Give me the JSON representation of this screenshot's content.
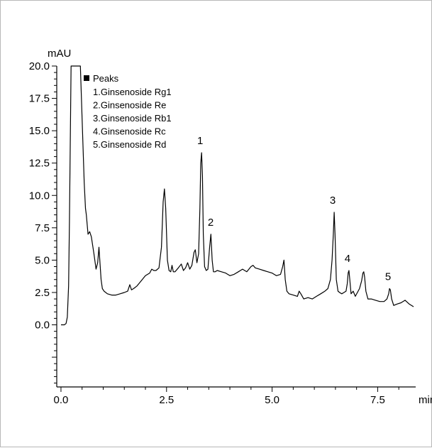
{
  "chart_data": {
    "type": "line",
    "title": "",
    "xlabel": "",
    "ylabel": "",
    "x_unit": "min",
    "y_unit": "mAU",
    "xlim": [
      -0.1,
      8.4
    ],
    "ylim": [
      -4.8,
      20.0
    ],
    "x_ticks": [
      "0.0",
      "2.5",
      "5.0",
      "7.5"
    ],
    "y_ticks": [
      "0.0",
      "2.5",
      "5.0",
      "7.5",
      "10.0",
      "12.5",
      "15.0",
      "17.5",
      "20.0"
    ],
    "legend": {
      "title": "Peaks",
      "entries": [
        "1.Ginsenoside Rg1",
        "2.Ginsenoside Re",
        "3.Ginsenoside Rb1",
        "4.Ginsenoside Rc",
        "5.Ginsenoside Rd"
      ]
    },
    "peak_labels": [
      {
        "label": "1",
        "x": 3.33,
        "y": 13.3
      },
      {
        "label": "2",
        "x": 3.58,
        "y": 7.0
      },
      {
        "label": "3",
        "x": 6.47,
        "y": 8.7
      },
      {
        "label": "4",
        "x": 6.82,
        "y": 4.2
      },
      {
        "label": "5",
        "x": 7.78,
        "y": 2.8
      }
    ],
    "series": [
      {
        "x": [
          0.0,
          0.08,
          0.12,
          0.15,
          0.18,
          0.2,
          0.24,
          0.3,
          0.4,
          0.46,
          0.5,
          0.53,
          0.55,
          0.58,
          0.6,
          0.64,
          0.68,
          0.72,
          0.78,
          0.83,
          0.87,
          0.9,
          0.92,
          0.95,
          0.98,
          1.02,
          1.1,
          1.2,
          1.3,
          1.4,
          1.5,
          1.58,
          1.63,
          1.67,
          1.72,
          1.8,
          1.9,
          2.0,
          2.1,
          2.15,
          2.2,
          2.25,
          2.32,
          2.38,
          2.42,
          2.45,
          2.48,
          2.52,
          2.56,
          2.6,
          2.63,
          2.66,
          2.7,
          2.78,
          2.85,
          2.9,
          2.95,
          3.0,
          3.05,
          3.1,
          3.15,
          3.18,
          3.22,
          3.26,
          3.29,
          3.31,
          3.33,
          3.35,
          3.37,
          3.4,
          3.44,
          3.48,
          3.52,
          3.55,
          3.58,
          3.61,
          3.65,
          3.7,
          3.8,
          3.9,
          4.0,
          4.1,
          4.2,
          4.3,
          4.4,
          4.5,
          4.55,
          4.6,
          4.7,
          4.8,
          4.9,
          5.0,
          5.1,
          5.2,
          5.25,
          5.28,
          5.31,
          5.35,
          5.4,
          5.5,
          5.6,
          5.64,
          5.68,
          5.75,
          5.85,
          5.95,
          6.05,
          6.15,
          6.25,
          6.32,
          6.38,
          6.42,
          6.45,
          6.47,
          6.49,
          6.52,
          6.56,
          6.6,
          6.65,
          6.7,
          6.75,
          6.78,
          6.8,
          6.82,
          6.84,
          6.87,
          6.92,
          6.97,
          7.02,
          7.07,
          7.12,
          7.15,
          7.17,
          7.19,
          7.22,
          7.27,
          7.35,
          7.45,
          7.55,
          7.65,
          7.72,
          7.76,
          7.78,
          7.8,
          7.83,
          7.88,
          7.95,
          8.05,
          8.15,
          8.25,
          8.35
        ],
        "y": [
          0.0,
          0.0,
          0.1,
          0.6,
          3.0,
          8.0,
          20.0,
          20.0,
          20.0,
          20.0,
          16.0,
          13.0,
          11.0,
          9.0,
          8.5,
          7.0,
          7.2,
          6.8,
          5.5,
          4.3,
          4.8,
          6.0,
          5.0,
          3.5,
          2.8,
          2.6,
          2.4,
          2.3,
          2.3,
          2.4,
          2.5,
          2.6,
          3.1,
          2.7,
          2.8,
          3.0,
          3.4,
          3.8,
          4.0,
          4.3,
          4.2,
          4.2,
          4.4,
          6.0,
          9.5,
          10.5,
          9.0,
          5.0,
          4.2,
          4.1,
          4.6,
          4.1,
          4.1,
          4.4,
          4.7,
          4.2,
          4.4,
          4.8,
          4.3,
          4.6,
          5.6,
          5.8,
          4.8,
          5.5,
          9.0,
          12.5,
          13.3,
          11.5,
          7.0,
          4.5,
          4.2,
          4.3,
          6.0,
          7.0,
          5.0,
          4.1,
          4.1,
          4.2,
          4.1,
          4.0,
          3.8,
          3.9,
          4.1,
          4.3,
          4.1,
          4.5,
          4.6,
          4.4,
          4.3,
          4.2,
          4.1,
          4.0,
          3.8,
          3.9,
          4.5,
          5.0,
          3.5,
          2.6,
          2.4,
          2.3,
          2.2,
          2.6,
          2.4,
          2.0,
          2.1,
          2.0,
          2.2,
          2.4,
          2.6,
          2.8,
          3.5,
          5.0,
          7.0,
          8.7,
          7.0,
          3.5,
          2.6,
          2.5,
          2.4,
          2.5,
          2.6,
          3.2,
          4.0,
          4.2,
          3.5,
          2.4,
          2.6,
          2.2,
          2.5,
          2.8,
          3.4,
          4.0,
          4.1,
          3.7,
          2.6,
          2.0,
          2.0,
          1.9,
          1.8,
          1.8,
          2.0,
          2.4,
          2.8,
          2.7,
          2.0,
          1.5,
          1.6,
          1.7,
          1.9,
          1.6,
          1.4
        ]
      }
    ]
  }
}
